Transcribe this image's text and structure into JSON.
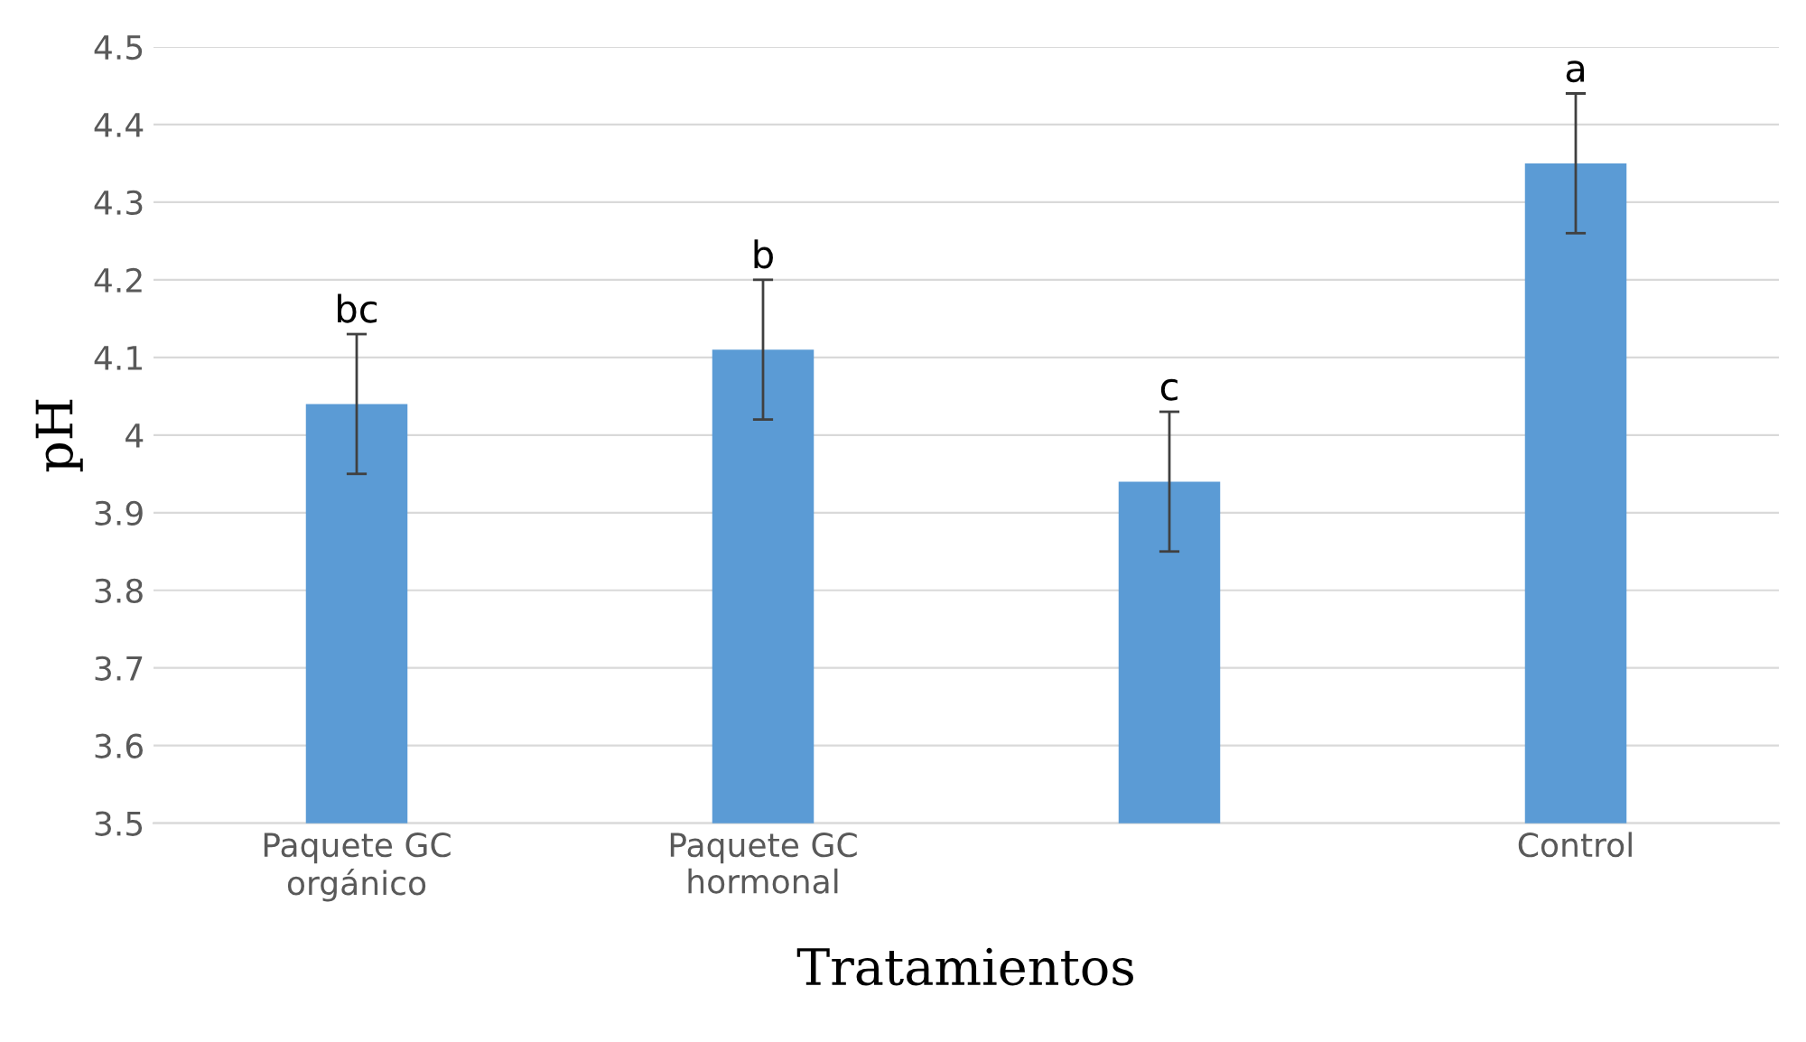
{
  "chart_data": {
    "type": "bar",
    "xlabel": "Tratamientos",
    "ylabel": "pH",
    "categories": [
      "Paquete GC\norgánico",
      "Paquete GC\nhormonal",
      null,
      "Control"
    ],
    "values": [
      4.04,
      4.11,
      3.94,
      4.35
    ],
    "errors": [
      0.09,
      0.09,
      0.09,
      0.09
    ],
    "color": "#5b9bd5",
    "ylim": [
      3.5,
      4.5
    ],
    "yticks": [
      3.5,
      3.6,
      3.7,
      3.8,
      3.9,
      4,
      4.1,
      4.2,
      4.3,
      4.4,
      4.5
    ],
    "grid": "y",
    "annotations": [
      "bc",
      "b",
      "c",
      "a"
    ]
  }
}
